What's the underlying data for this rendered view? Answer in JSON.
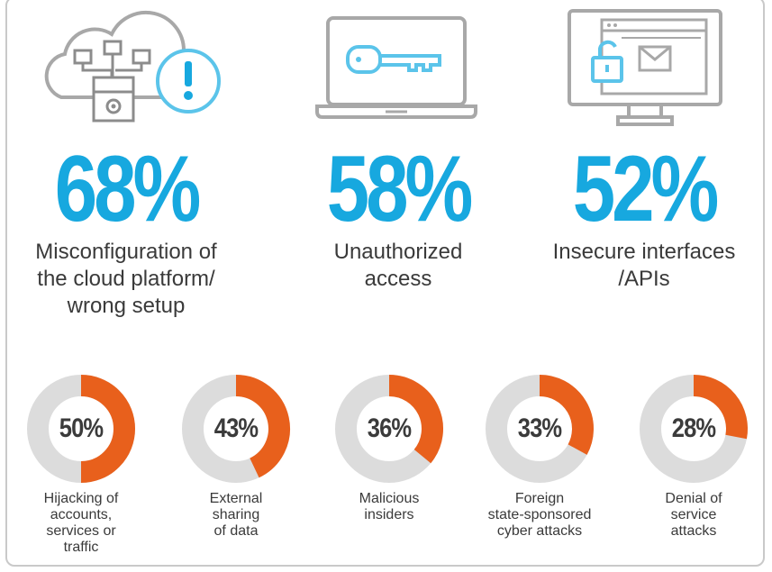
{
  "colors": {
    "accent_blue": "#17a8df",
    "donut_orange": "#e8601c",
    "donut_track": "#dcdcdc",
    "icon_gray": "#a8a8a8",
    "text_dark": "#3a3a3a"
  },
  "icons": [
    "cloud-network-alert-icon",
    "laptop-key-icon",
    "monitor-lock-mail-icon"
  ],
  "chart_data": {
    "type": "bar",
    "title": "",
    "highlights": [
      {
        "value": 68,
        "display": "68%",
        "label": "Misconfiguration of\nthe cloud platform/\nwrong setup"
      },
      {
        "value": 58,
        "display": "58%",
        "label": "Unauthorized\naccess"
      },
      {
        "value": 52,
        "display": "52%",
        "label": "Insecure interfaces\n/APIs"
      }
    ],
    "donuts": [
      {
        "value": 50,
        "display": "50%",
        "label": "Hijacking of\naccounts,\nservices or\ntraffic"
      },
      {
        "value": 43,
        "display": "43%",
        "label": "External\nsharing\nof data"
      },
      {
        "value": 36,
        "display": "36%",
        "label": "Malicious\ninsiders"
      },
      {
        "value": 33,
        "display": "33%",
        "label": "Foreign\nstate-sponsored\ncyber attacks"
      },
      {
        "value": 28,
        "display": "28%",
        "label": "Denial of\nservice\nattacks"
      }
    ]
  }
}
